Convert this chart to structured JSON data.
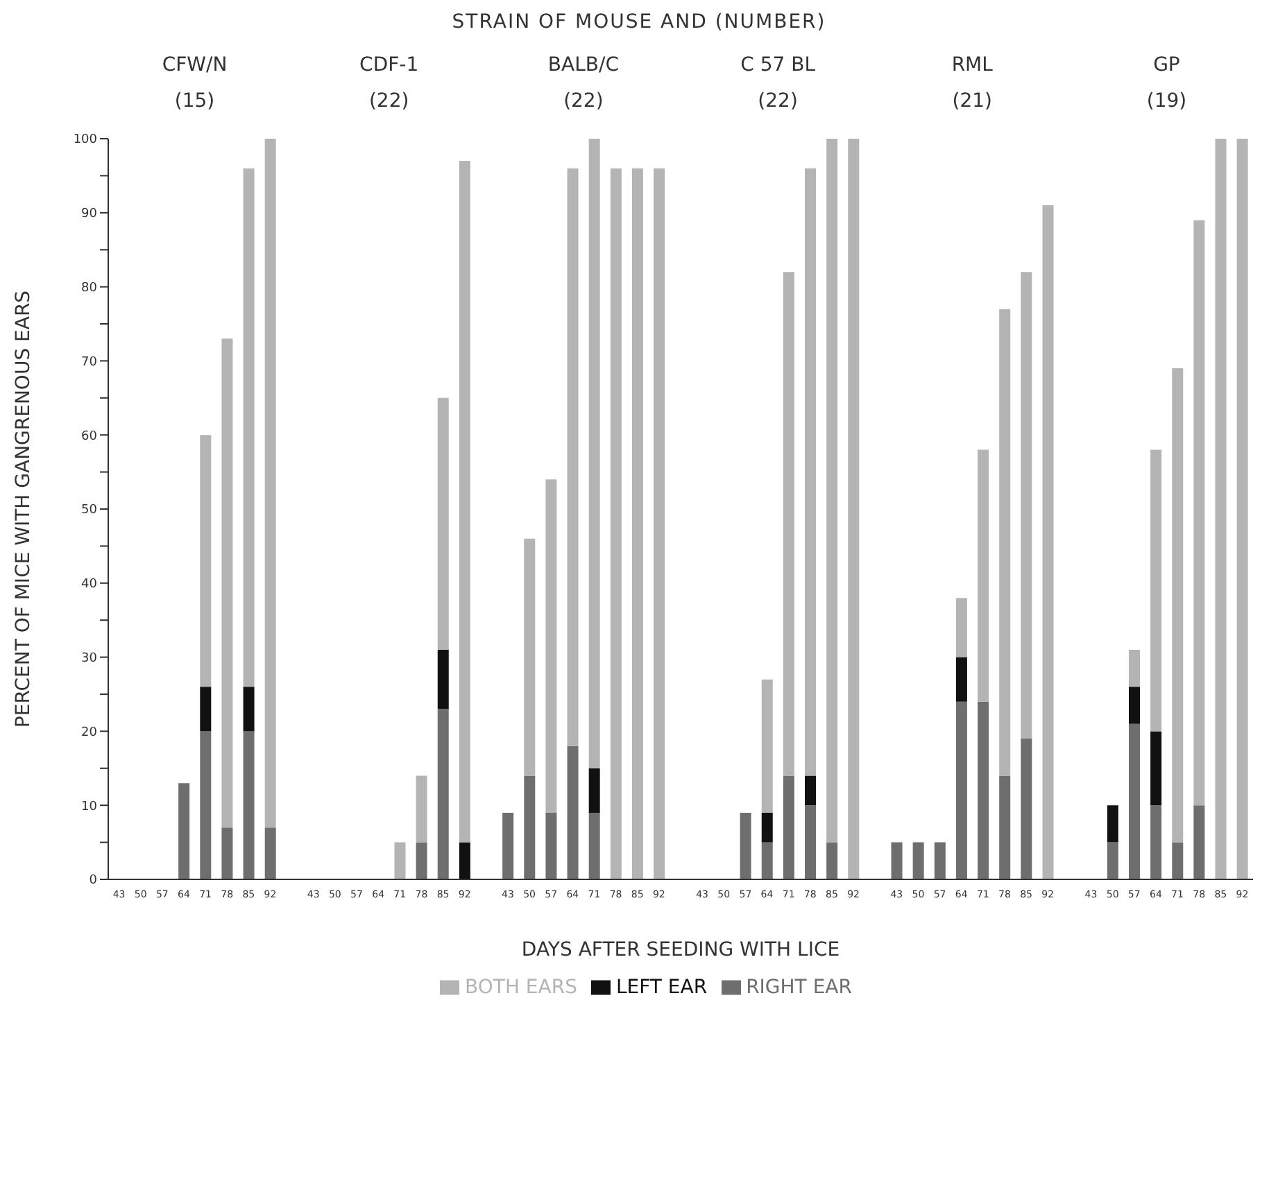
{
  "chart_data": {
    "type": "bar",
    "stacked": true,
    "title": "STRAIN OF MOUSE AND (NUMBER)",
    "xlabel": "DAYS AFTER SEEDING WITH LICE",
    "ylabel": "PERCENT OF MICE WITH GANGRENOUS EARS",
    "annotations": [
      "CFW/N",
      "(15)",
      "CDF-1",
      "(22)",
      "BALB/C",
      "(22)",
      "C 57 BL",
      "(22)",
      "RML",
      "(21)",
      "GP",
      "(19)"
    ],
    "categories": [
      "43",
      "50",
      "57",
      "64",
      "71",
      "78",
      "85",
      "92",
      null,
      "43",
      "50",
      "57",
      "64",
      "71",
      "78",
      "85",
      "92",
      null,
      "43",
      "50",
      "57",
      "64",
      "71",
      "78",
      "85",
      "92",
      null,
      "43",
      "50",
      "57",
      "64",
      "71",
      "78",
      "85",
      "92",
      null,
      "43",
      "50",
      "57",
      "64",
      "71",
      "78",
      "85",
      "92",
      null,
      "43",
      "50",
      "57",
      "64",
      "71",
      "78",
      "85",
      "92"
    ],
    "series": [
      {
        "name": "RIGHT EAR",
        "color": "#6e6e6e",
        "values": [
          0,
          0,
          0,
          13,
          20,
          7,
          20,
          7,
          null,
          0,
          0,
          0,
          0,
          0,
          5,
          23,
          0,
          null,
          9,
          14,
          9,
          18,
          9,
          0,
          0,
          0,
          null,
          0,
          0,
          9,
          5,
          14,
          10,
          5,
          0,
          null,
          5,
          5,
          5,
          24,
          24,
          14,
          19,
          0,
          null,
          0,
          5,
          21,
          10,
          5,
          10,
          0,
          0
        ]
      },
      {
        "name": "LEFT EAR",
        "color": "#111111",
        "values": [
          0,
          0,
          0,
          0,
          6,
          0,
          6,
          0,
          null,
          0,
          0,
          0,
          0,
          0,
          0,
          8,
          5,
          null,
          0,
          0,
          0,
          0,
          6,
          0,
          0,
          0,
          null,
          0,
          0,
          0,
          4,
          0,
          4,
          0,
          0,
          null,
          0,
          0,
          0,
          6,
          0,
          0,
          0,
          0,
          null,
          0,
          5,
          5,
          10,
          0,
          0,
          0,
          0
        ]
      },
      {
        "name": "BOTH EARS",
        "color": "#b4b4b4",
        "values": [
          0,
          0,
          0,
          0,
          34,
          66,
          70,
          93,
          null,
          0,
          0,
          0,
          0,
          5,
          9,
          34,
          92,
          null,
          0,
          32,
          45,
          78,
          85,
          96,
          96,
          96,
          null,
          0,
          0,
          0,
          18,
          68,
          82,
          95,
          100,
          null,
          0,
          0,
          0,
          8,
          34,
          63,
          63,
          91,
          null,
          0,
          0,
          5,
          38,
          64,
          79,
          100,
          100
        ]
      }
    ],
    "ylim": [
      0,
      100
    ],
    "yticks": [
      0,
      {
        "value": 5,
        "label": null
      },
      10,
      {
        "value": 15,
        "label": null
      },
      20,
      {
        "value": 25,
        "label": null
      },
      30,
      {
        "value": 35,
        "label": null
      },
      40,
      {
        "value": 45,
        "label": null
      },
      50,
      {
        "value": 55,
        "label": null
      },
      60,
      {
        "value": 65,
        "label": null
      },
      70,
      {
        "value": 75,
        "label": null
      },
      80,
      {
        "value": 85,
        "label": null
      },
      90,
      {
        "value": 95,
        "label": null
      },
      100
    ],
    "legend": "bottom"
  }
}
